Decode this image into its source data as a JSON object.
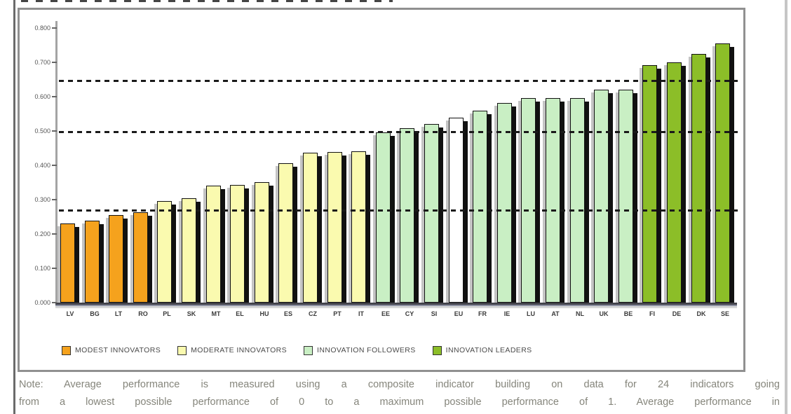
{
  "chart_data": {
    "type": "bar",
    "title": "",
    "xlabel": "",
    "ylabel": "",
    "categories": [
      "LV",
      "BG",
      "LT",
      "RO",
      "PL",
      "SK",
      "MT",
      "EL",
      "HU",
      "ES",
      "CZ",
      "PT",
      "IT",
      "EE",
      "CY",
      "SI",
      "EU",
      "FR",
      "IE",
      "LU",
      "AT",
      "NL",
      "UK",
      "BE",
      "FI",
      "DE",
      "DK",
      "SE"
    ],
    "values": [
      0.23,
      0.239,
      0.255,
      0.263,
      0.296,
      0.305,
      0.34,
      0.343,
      0.352,
      0.406,
      0.436,
      0.438,
      0.441,
      0.496,
      0.509,
      0.521,
      0.539,
      0.56,
      0.581,
      0.595,
      0.595,
      0.596,
      0.62,
      0.621,
      0.691,
      0.7,
      0.724,
      0.755
    ],
    "groups": [
      "modest",
      "modest",
      "modest",
      "modest",
      "moderate",
      "moderate",
      "moderate",
      "moderate",
      "moderate",
      "moderate",
      "moderate",
      "moderate",
      "moderate",
      "follower",
      "follower",
      "follower",
      "eu",
      "follower",
      "follower",
      "follower",
      "follower",
      "follower",
      "follower",
      "follower",
      "leader",
      "leader",
      "leader",
      "leader"
    ],
    "group_colors": {
      "modest": "#F5A21D",
      "moderate": "#FAFAAF",
      "follower": "#C9EFC4",
      "eu": "#FFFFFF",
      "leader": "#8CBE28"
    },
    "shadow_color": "#111111",
    "ylim": [
      0,
      0.8
    ],
    "yticks": [
      "0.800",
      "0.700",
      "0.600",
      "0.500",
      "0.400",
      "0.300",
      "0.200",
      "0.100",
      "0.000"
    ],
    "thresholds": [
      0.647,
      0.497,
      0.27
    ],
    "grid": "dashed-threshold-lines-only",
    "legend_position": "bottom",
    "legend": [
      {
        "label": "MODEST INNOVATORS",
        "group": "modest"
      },
      {
        "label": "MODERATE INNOVATORS",
        "group": "moderate"
      },
      {
        "label": "INNOVATION FOLLOWERS",
        "group": "follower"
      },
      {
        "label": "INNOVATION LEADERS",
        "group": "leader"
      }
    ]
  },
  "note": {
    "line1": "Note: Average performance is measured using a composite indicator building on data for 24 indicators going",
    "line2": "from a lowest possible performance of 0 to a maximum possible performance of 1. Average performance in"
  }
}
